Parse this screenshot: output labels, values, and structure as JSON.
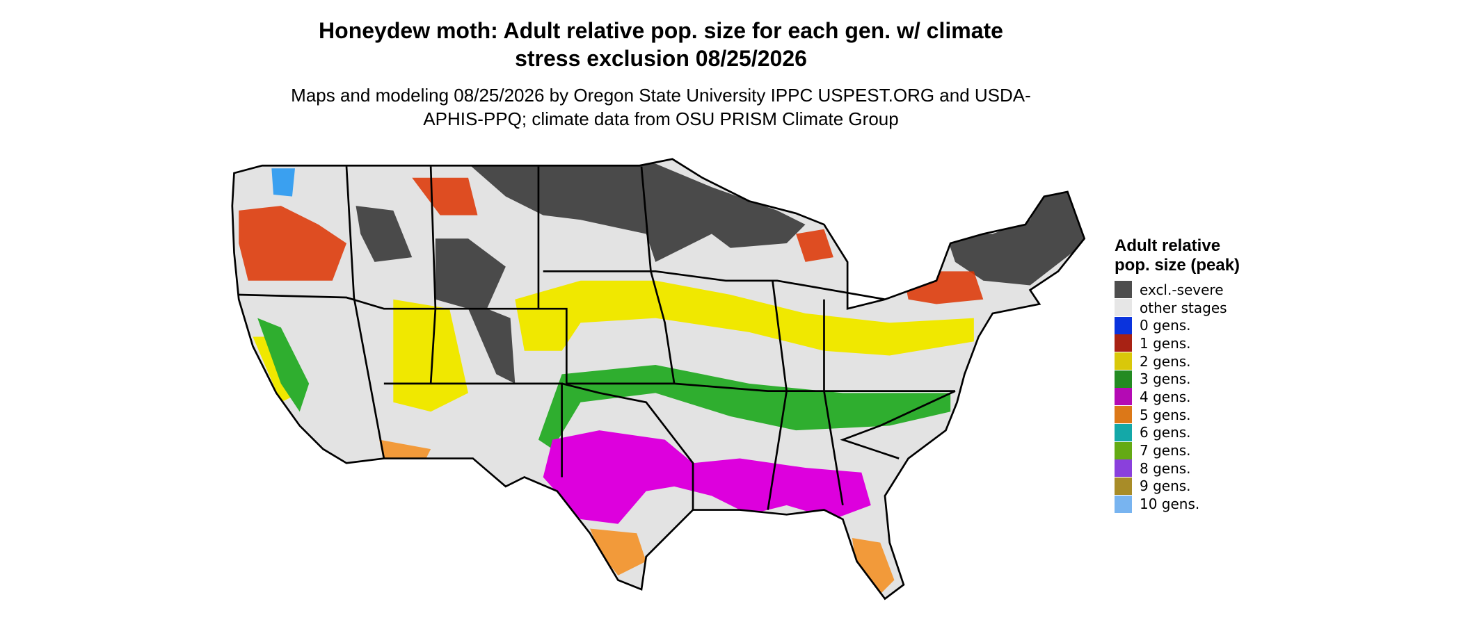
{
  "title": "Honeydew moth: Adult relative pop. size for each gen. w/ climate stress exclusion 08/25/2026",
  "subtitle": "Maps and modeling 08/25/2026 by Oregon State University IPPC USPEST.ORG and USDA-APHIS-PPQ; climate data from OSU PRISM Climate Group",
  "legend": {
    "title": "Adult relative pop. size (peak)",
    "items": [
      {
        "label": "excl.-severe",
        "color": "#4d4d4d"
      },
      {
        "label": "other stages",
        "color": "#e6e6e6"
      },
      {
        "label": "0 gens.",
        "color": "#0a33dd"
      },
      {
        "label": "1 gens.",
        "color": "#a82214"
      },
      {
        "label": "2 gens.",
        "color": "#d9c80a"
      },
      {
        "label": "3 gens.",
        "color": "#238b22"
      },
      {
        "label": "4 gens.",
        "color": "#b40ab4"
      },
      {
        "label": "5 gens.",
        "color": "#dc7818"
      },
      {
        "label": "6 gens.",
        "color": "#14a8a8"
      },
      {
        "label": "7 gens.",
        "color": "#64aa14"
      },
      {
        "label": "8 gens.",
        "color": "#8a40dc"
      },
      {
        "label": "9 gens.",
        "color": "#a88c28"
      },
      {
        "label": "10 gens.",
        "color": "#78b4f0"
      }
    ]
  }
}
